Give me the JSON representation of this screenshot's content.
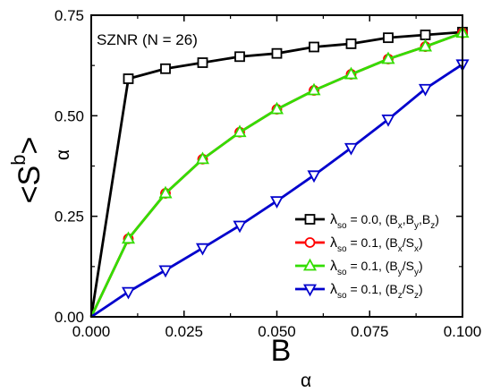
{
  "chart_data": {
    "type": "line",
    "annotation": "SZNR (N = 26)",
    "xlabel": {
      "main": "B",
      "sub": "α"
    },
    "ylabel": {
      "pre": "<S",
      "sup": "b",
      "post": ">",
      "sub": "α"
    },
    "xlim": [
      0,
      0.1
    ],
    "ylim": [
      0,
      0.75
    ],
    "xticks": [
      0,
      0.025,
      0.05,
      0.075,
      0.1
    ],
    "xtick_labels": [
      "0.000",
      "0.025",
      "0.050",
      "0.075",
      "0.100"
    ],
    "yticks": [
      0,
      0.25,
      0.5,
      0.75
    ],
    "ytick_labels": [
      "0.00",
      "0.25",
      "0.50",
      "0.75"
    ],
    "x": [
      0,
      0.01,
      0.02,
      0.03,
      0.04,
      0.05,
      0.06,
      0.07,
      0.08,
      0.09,
      0.1
    ],
    "legend_position": "bottom-right",
    "series": [
      {
        "legend": {
          "lam": "λ",
          "lamsub": "so",
          "text": " = 0.0, (B",
          "parts": [
            [
              "x",
              "sub"
            ],
            [
              ",B",
              "t"
            ],
            [
              "y",
              "sub"
            ],
            [
              ",B",
              "t"
            ],
            [
              "z",
              "sub"
            ],
            [
              ")",
              "t"
            ]
          ]
        },
        "color": "#000000",
        "marker": "square",
        "values": [
          0,
          0.592,
          0.617,
          0.632,
          0.647,
          0.655,
          0.671,
          0.679,
          0.694,
          0.701,
          0.708
        ]
      },
      {
        "legend": {
          "lam": "λ",
          "lamsub": "so",
          "text": " = 0.1, (B",
          "parts": [
            [
              "x",
              "sub"
            ],
            [
              "/S",
              "t"
            ],
            [
              "x",
              "sub"
            ],
            [
              ")",
              "t"
            ]
          ]
        },
        "color": "#ff0000",
        "marker": "circle",
        "values": [
          0,
          0.194,
          0.307,
          0.392,
          0.459,
          0.516,
          0.563,
          0.603,
          0.641,
          0.672,
          0.706
        ]
      },
      {
        "legend": {
          "lam": "λ",
          "lamsub": "so",
          "text": " = 0.1, (B",
          "parts": [
            [
              "y",
              "sub"
            ],
            [
              "/S",
              "t"
            ],
            [
              "y",
              "sub"
            ],
            [
              ")",
              "t"
            ]
          ]
        },
        "color": "#33dd00",
        "marker": "triangle-up",
        "values": [
          0,
          0.194,
          0.307,
          0.392,
          0.459,
          0.516,
          0.563,
          0.603,
          0.641,
          0.672,
          0.706
        ]
      },
      {
        "legend": {
          "lam": "λ",
          "lamsub": "so",
          "text": " = 0.1, (B",
          "parts": [
            [
              "z",
              "sub"
            ],
            [
              "/S",
              "t"
            ],
            [
              "z",
              "sub"
            ],
            [
              ")",
              "t"
            ]
          ]
        },
        "color": "#0000cc",
        "marker": "triangle-down",
        "values": [
          0,
          0.062,
          0.116,
          0.171,
          0.227,
          0.288,
          0.352,
          0.42,
          0.491,
          0.567,
          0.628
        ]
      }
    ]
  }
}
